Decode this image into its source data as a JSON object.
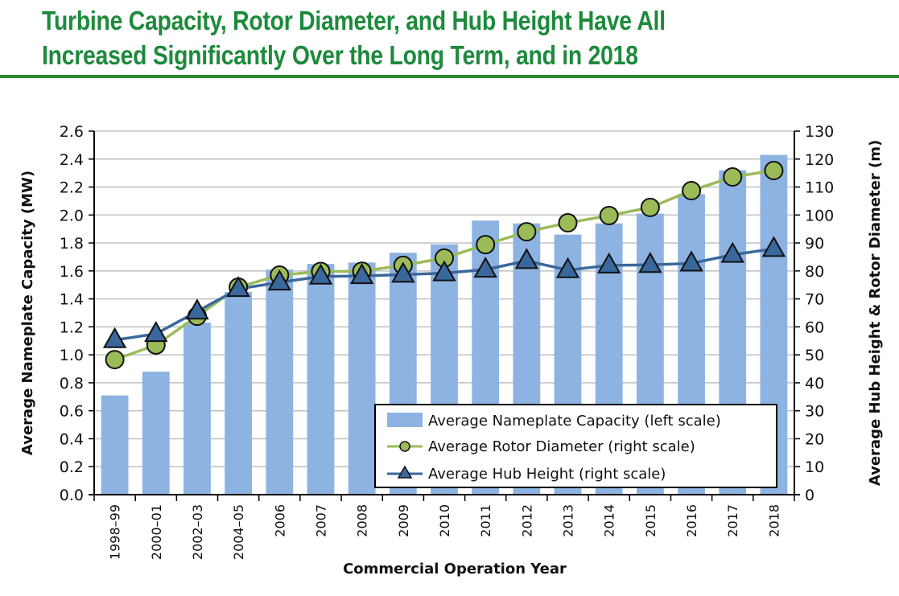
{
  "title": {
    "line1": "Turbine Capacity, Rotor Diameter, and Hub Height Have All",
    "line2": "Increased Significantly Over the Long Term, and in 2018"
  },
  "colors": {
    "title": "#1d8a3c",
    "rule": "#2b8a2f",
    "capacity_bar": "#8db3e2",
    "rotor_line": "#9bbb59",
    "hub_line": "#3a689c",
    "gridline": "#c0c0c0",
    "axis": "#000000"
  },
  "chart_data": {
    "type": "bar",
    "title": "Turbine Capacity, Rotor Diameter, and Hub Height Have All Increased Significantly Over the Long Term, and in 2018",
    "xlabel": "Commercial Operation Year",
    "ylabel": "Average Nameplate Capacity (MW)",
    "y2label": "Average Hub Height & Rotor Diameter (m)",
    "ylim": [
      0,
      2.6
    ],
    "y2lim": [
      0,
      130
    ],
    "yticks": [
      "0.0",
      "0.2",
      "0.4",
      "0.6",
      "0.8",
      "1.0",
      "1.2",
      "1.4",
      "1.6",
      "1.8",
      "2.0",
      "2.2",
      "2.4",
      "2.6"
    ],
    "y2ticks": [
      "0",
      "10",
      "20",
      "30",
      "40",
      "50",
      "60",
      "70",
      "80",
      "90",
      "100",
      "110",
      "120",
      "130"
    ],
    "grid": true,
    "legend_position": "bottom-right",
    "categories": [
      "1998–99",
      "2000–01",
      "2002–03",
      "2004–05",
      "2006",
      "2007",
      "2008",
      "2009",
      "2010",
      "2011",
      "2012",
      "2013",
      "2014",
      "2015",
      "2016",
      "2017",
      "2018"
    ],
    "series": [
      {
        "name": "Average Nameplate Capacity (left scale)",
        "type": "bar",
        "axis": "left",
        "values": [
          0.71,
          0.88,
          1.23,
          1.45,
          1.61,
          1.65,
          1.66,
          1.73,
          1.79,
          1.96,
          1.94,
          1.86,
          1.94,
          2.01,
          2.15,
          2.32,
          2.43
        ]
      },
      {
        "name": "Average Rotor Diameter (right scale)",
        "type": "line",
        "marker": "circle",
        "axis": "right",
        "values": [
          48.3,
          53.5,
          63.8,
          74.2,
          78.5,
          79.8,
          79.9,
          82.0,
          84.6,
          89.4,
          94.0,
          97.2,
          99.8,
          102.7,
          108.7,
          113.6,
          115.9
        ]
      },
      {
        "name": "Average Hub Height (right scale)",
        "type": "line",
        "marker": "triangle",
        "axis": "right",
        "values": [
          55.3,
          57.5,
          65.5,
          73.6,
          75.9,
          78.0,
          78.2,
          78.7,
          79.2,
          80.5,
          83.6,
          80.3,
          82.0,
          82.2,
          82.7,
          85.8,
          87.9
        ]
      }
    ]
  }
}
